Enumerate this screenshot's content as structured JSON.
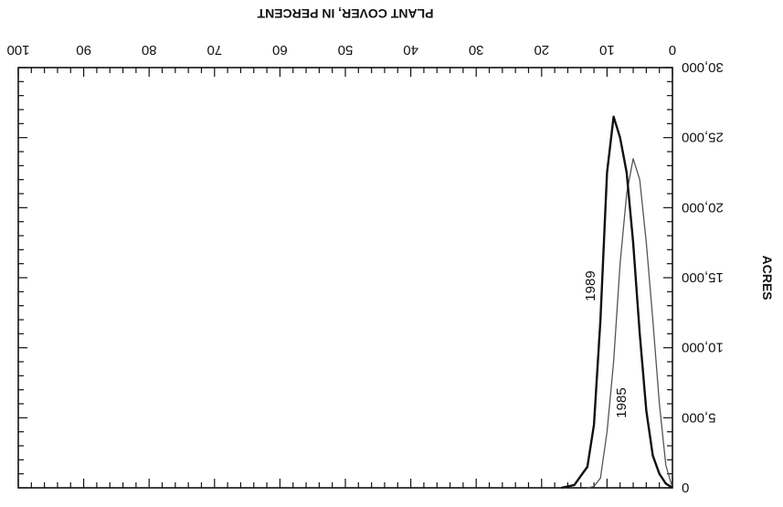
{
  "chart_data": {
    "type": "line",
    "xlabel": "PLANT COVER, IN PERCENT",
    "ylabel": "ACRES",
    "xlim": [
      0,
      100
    ],
    "ylim": [
      0,
      30000
    ],
    "x_ticks": [
      {
        "value": 0,
        "label": "0"
      },
      {
        "value": 10,
        "label": "10"
      },
      {
        "value": 20,
        "label": "20"
      },
      {
        "value": 30,
        "label": "30"
      },
      {
        "value": 40,
        "label": "40"
      },
      {
        "value": 50,
        "label": "50"
      },
      {
        "value": 60,
        "label": "60"
      },
      {
        "value": 70,
        "label": "70"
      },
      {
        "value": 80,
        "label": "80"
      },
      {
        "value": 90,
        "label": "90"
      },
      {
        "value": 100,
        "label": "100"
      }
    ],
    "y_ticks": [
      {
        "value": 0,
        "label": "0"
      },
      {
        "value": 5000,
        "label": "5,000"
      },
      {
        "value": 10000,
        "label": "10,000"
      },
      {
        "value": 15000,
        "label": "15,000"
      },
      {
        "value": 20000,
        "label": "20,000"
      },
      {
        "value": 25000,
        "label": "25,000"
      },
      {
        "value": 30000,
        "label": "30,000"
      }
    ],
    "orientation": "rotated-180",
    "series": [
      {
        "name": "1985",
        "color": "#555555",
        "points": [
          [
            0,
            0
          ],
          [
            1,
            1600
          ],
          [
            2,
            6000
          ],
          [
            3,
            12000
          ],
          [
            4,
            17500
          ],
          [
            5,
            22000
          ],
          [
            6,
            23500
          ],
          [
            7,
            21000
          ],
          [
            8,
            16000
          ],
          [
            9,
            9000
          ],
          [
            10,
            4000
          ],
          [
            11,
            700
          ],
          [
            12,
            100
          ],
          [
            13,
            0
          ]
        ]
      },
      {
        "name": "1989",
        "color": "#111111",
        "points": [
          [
            0,
            0
          ],
          [
            1,
            300
          ],
          [
            2,
            1000
          ],
          [
            3,
            2300
          ],
          [
            4,
            5500
          ],
          [
            5,
            11000
          ],
          [
            6,
            17500
          ],
          [
            7,
            22500
          ],
          [
            8,
            25000
          ],
          [
            9,
            26500
          ],
          [
            10,
            22500
          ],
          [
            11,
            12000
          ],
          [
            12,
            4500
          ],
          [
            13,
            1500
          ],
          [
            15,
            200
          ],
          [
            17,
            0
          ]
        ]
      }
    ]
  }
}
